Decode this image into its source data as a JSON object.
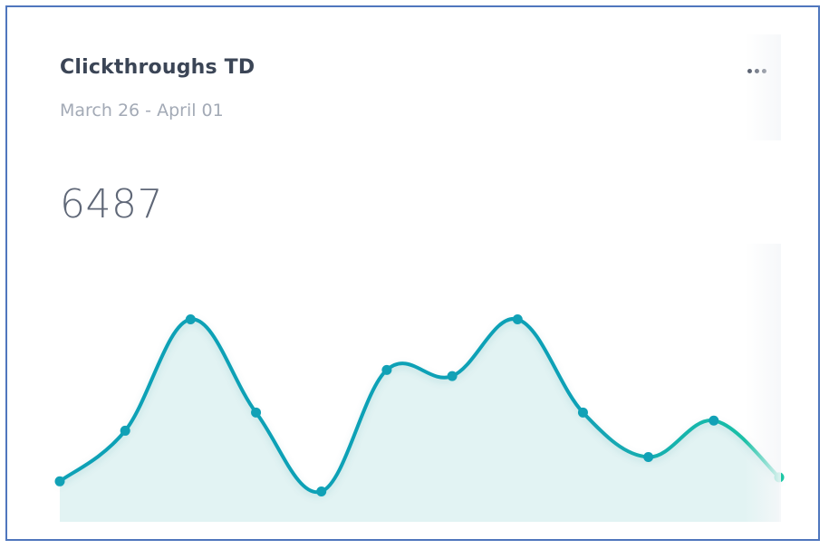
{
  "widget": {
    "title": "Clickthroughs TD",
    "date_range": "March 26 - April 01",
    "metric_value": "6487",
    "menu_icon": "more-horizontal-icon"
  },
  "chart_data": {
    "type": "area",
    "title": "",
    "xlabel": "",
    "ylabel": "",
    "x": [
      1,
      2,
      3,
      4,
      5,
      6,
      7,
      8,
      9,
      10,
      11,
      12
    ],
    "series": [
      {
        "values": [
          20,
          45,
          100,
          54,
          15,
          75,
          72,
          100,
          54,
          32,
          50,
          22
        ]
      }
    ],
    "xlim": [
      1,
      12
    ],
    "ylim": [
      0,
      115
    ],
    "grid": false,
    "legend": "none",
    "colors": {
      "line_start": "#11a1b6",
      "line_end": "#1cc6a4",
      "points": "#11a1b6",
      "fill": "#e2f3f3"
    }
  }
}
